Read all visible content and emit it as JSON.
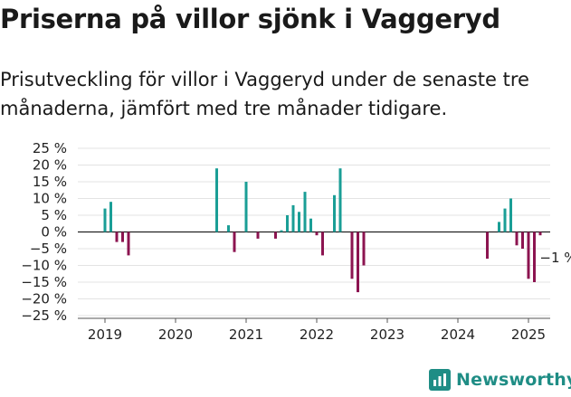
{
  "title": "Priserna på villor sjönk i Vaggeryd",
  "subtitle": "Prisutveckling för villor i Vaggeryd under de senaste tre månaderna, jämfört med tre månader tidigare.",
  "brand": {
    "name": "Newsworthy",
    "icon": "bar-chart-logo-icon"
  },
  "chart_data": {
    "type": "bar",
    "ylim": [
      -25,
      25
    ],
    "yticks": [
      -25,
      -20,
      -15,
      -10,
      -5,
      0,
      5,
      10,
      15,
      20,
      25
    ],
    "ytick_labels": [
      "−25 %",
      "−20 %",
      "−15 %",
      "−10 %",
      "−5 %",
      "0 %",
      "5 %",
      "10 %",
      "15 %",
      "20 %",
      "25 %"
    ],
    "xtick_labels": [
      "2019",
      "2020",
      "2021",
      "2022",
      "2023",
      "2024",
      "2025"
    ],
    "grid": true,
    "positive_color": "#1a9e96",
    "negative_color": "#8c1450",
    "bars": [
      {
        "date": "2019-01",
        "value": 7
      },
      {
        "date": "2019-02",
        "value": 9
      },
      {
        "date": "2019-03",
        "value": -3
      },
      {
        "date": "2019-04",
        "value": -3
      },
      {
        "date": "2019-05",
        "value": -7
      },
      {
        "date": "2020-08",
        "value": 19
      },
      {
        "date": "2020-10",
        "value": 2
      },
      {
        "date": "2020-11",
        "value": -6
      },
      {
        "date": "2021-01",
        "value": 15
      },
      {
        "date": "2021-03",
        "value": -2
      },
      {
        "date": "2021-06",
        "value": -2
      },
      {
        "date": "2021-07",
        "value": 0.5
      },
      {
        "date": "2021-08",
        "value": 5
      },
      {
        "date": "2021-09",
        "value": 8
      },
      {
        "date": "2021-10",
        "value": 6
      },
      {
        "date": "2021-11",
        "value": 12
      },
      {
        "date": "2021-12",
        "value": 4
      },
      {
        "date": "2022-01",
        "value": -1
      },
      {
        "date": "2022-02",
        "value": -7
      },
      {
        "date": "2022-04",
        "value": 11
      },
      {
        "date": "2022-05",
        "value": 19
      },
      {
        "date": "2022-07",
        "value": -14
      },
      {
        "date": "2022-08",
        "value": -18
      },
      {
        "date": "2022-09",
        "value": -10
      },
      {
        "date": "2024-06",
        "value": -8
      },
      {
        "date": "2024-08",
        "value": 3
      },
      {
        "date": "2024-09",
        "value": 7
      },
      {
        "date": "2024-10",
        "value": 10
      },
      {
        "date": "2024-11",
        "value": -4
      },
      {
        "date": "2024-12",
        "value": -5
      },
      {
        "date": "2025-01",
        "value": -14
      },
      {
        "date": "2025-02",
        "value": -15
      },
      {
        "date": "2025-03",
        "value": -1
      }
    ],
    "annotation": {
      "date": "2025-03",
      "value": -1,
      "label": "−1 %"
    }
  }
}
